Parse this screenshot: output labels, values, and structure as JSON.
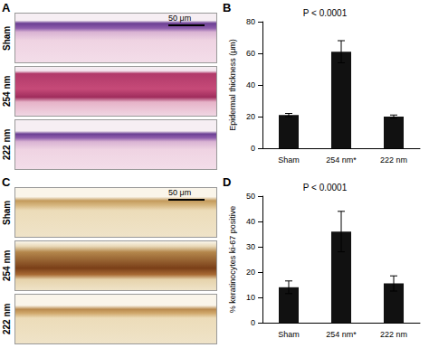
{
  "images": [
    {
      "panel": "A",
      "rows": [
        "Sham",
        "254 nm",
        "222 nm"
      ],
      "scale_bar": "50 μm"
    },
    {
      "panel": "C",
      "rows": [
        "Sham",
        "254 nm",
        "222 nm"
      ],
      "scale_bar": "50 μm"
    }
  ],
  "chart_data": [
    {
      "panel": "B",
      "type": "bar",
      "categories": [
        "Sham",
        "254 nm*",
        "222 nm"
      ],
      "values": [
        21,
        61,
        20
      ],
      "errors": [
        1,
        7,
        1
      ],
      "color": "#111111",
      "ylabel": "Epidermal thickness (μm)",
      "annotation": "P < 0.0001",
      "ylim": [
        0,
        80
      ],
      "yticks": [
        0,
        20,
        40,
        60,
        80
      ],
      "grid": false
    },
    {
      "panel": "D",
      "type": "bar",
      "categories": [
        "Sham",
        "254 nm*",
        "222 nm"
      ],
      "values": [
        14,
        36,
        15.5
      ],
      "errors": [
        2.5,
        8,
        3
      ],
      "color": "#111111",
      "ylabel": "% keratinocytes ki-67 positive",
      "annotation": "P < 0.0001",
      "ylim": [
        0,
        50
      ],
      "yticks": [
        0,
        10,
        20,
        30,
        40,
        50
      ],
      "grid": false
    }
  ]
}
